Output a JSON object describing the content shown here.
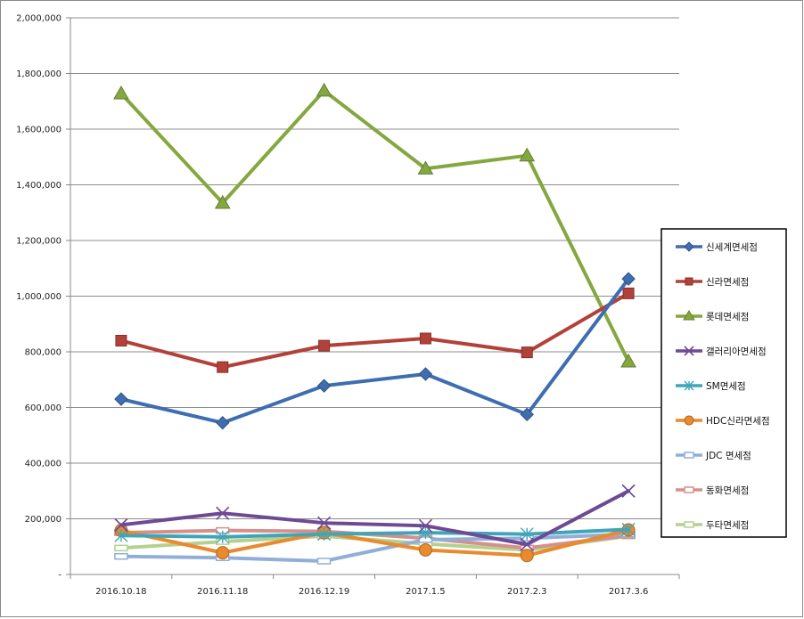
{
  "chart_data": {
    "type": "line",
    "title": "",
    "xlabel": "",
    "ylabel": "",
    "categories": [
      "2016.10.18",
      "2016.11.18",
      "2016.12.19",
      "2017.1.5",
      "2017.2.3",
      "2017.3.6"
    ],
    "ylim": [
      0,
      2000000
    ],
    "yticks": [
      0,
      200000,
      400000,
      600000,
      800000,
      1000000,
      1200000,
      1400000,
      1600000,
      1800000,
      2000000
    ],
    "ytick_labels": [
      "-",
      "200,000",
      "400,000",
      "600,000",
      "800,000",
      "1,000,000",
      "1,200,000",
      "1,400,000",
      "1,600,000",
      "1,800,000",
      "2,000,000"
    ],
    "grid": "horizontal",
    "legend_position": "right",
    "series": [
      {
        "name": "신세계면세점",
        "color": "#3f6eb0",
        "marker": "diamond",
        "values": [
          630000,
          545000,
          678000,
          720000,
          575000,
          1062000
        ]
      },
      {
        "name": "신라면세점",
        "color": "#b2413a",
        "marker": "square",
        "values": [
          840000,
          745000,
          822000,
          848000,
          798000,
          1010000
        ]
      },
      {
        "name": "롯데면세점",
        "color": "#84a83f",
        "marker": "triangle",
        "values": [
          1728000,
          1335000,
          1738000,
          1458000,
          1505000,
          765000
        ]
      },
      {
        "name": "갤러리아면세점",
        "color": "#6e4a94",
        "marker": "x",
        "values": [
          178000,
          220000,
          185000,
          175000,
          108000,
          300000
        ]
      },
      {
        "name": "SM면세점",
        "color": "#3ea6b8",
        "marker": "asterisk",
        "values": [
          140000,
          135000,
          145000,
          150000,
          145000,
          162000
        ]
      },
      {
        "name": "HDC신라면세점",
        "color": "#e98a2e",
        "marker": "circle",
        "values": [
          158000,
          78000,
          150000,
          88000,
          68000,
          160000
        ]
      },
      {
        "name": "JDC 면세점",
        "color": "#90aed8",
        "marker": "dash",
        "values": [
          65000,
          60000,
          48000,
          125000,
          130000,
          145000
        ]
      },
      {
        "name": "동화면세점",
        "color": "#d6908c",
        "marker": "dash",
        "values": [
          150000,
          158000,
          155000,
          130000,
          95000,
          140000
        ]
      },
      {
        "name": "두타면세점",
        "color": "#b5d08e",
        "marker": "dash",
        "values": [
          95000,
          118000,
          138000,
          110000,
          88000,
          138000
        ]
      }
    ]
  }
}
